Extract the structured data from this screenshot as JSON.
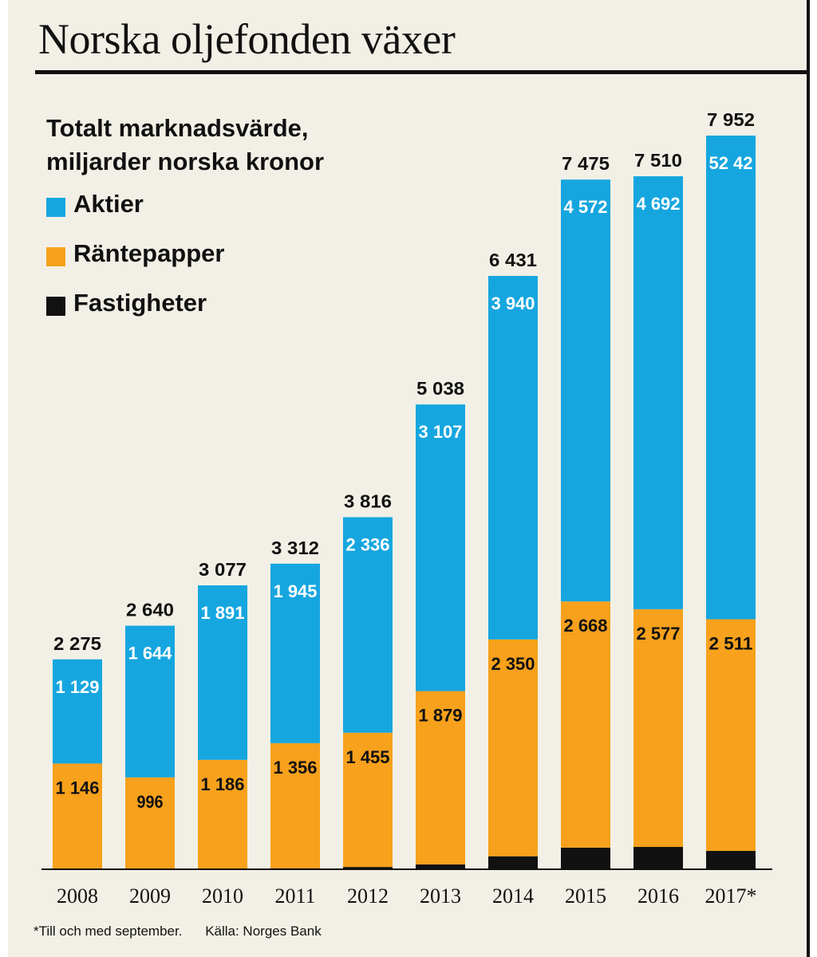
{
  "header": {
    "title": "Norska oljefonden växer",
    "subtitle_line1": "Totalt marknadsvärde,",
    "subtitle_line2": "miljarder norska kronor"
  },
  "footer": {
    "note": "*Till och med september.",
    "source": "Källa: Norges Bank"
  },
  "colors": {
    "aktier": "#16a6df",
    "rantepapper": "#f7a11c",
    "fastigheter": "#111111",
    "background": "#f2f0e6"
  },
  "chart_data": {
    "type": "bar",
    "stacked": true,
    "categories": [
      "2008",
      "2009",
      "2010",
      "2011",
      "2012",
      "2013",
      "2014",
      "2015",
      "2016",
      "2017*"
    ],
    "series": [
      {
        "name": "Fastigheter",
        "values": [
          0,
          0,
          0,
          11,
          25,
          52,
          141,
          235,
          242,
          199
        ],
        "labels": [
          "",
          "",
          "",
          "11",
          "25",
          "52",
          "141",
          "235",
          "242",
          "199"
        ]
      },
      {
        "name": "Räntepapper",
        "values": [
          1146,
          996,
          1186,
          1356,
          1455,
          1879,
          2350,
          2668,
          2577,
          2511
        ],
        "labels": [
          "1 146",
          "996",
          "1 186",
          "1 356",
          "1 455",
          "1 879",
          "2 350",
          "2 668",
          "2 577",
          "2 511"
        ]
      },
      {
        "name": "Aktier",
        "values": [
          1129,
          1644,
          1891,
          1945,
          2336,
          3107,
          3940,
          4572,
          4692,
          5242
        ],
        "labels": [
          "1 129",
          "1 644",
          "1 891",
          "1 945",
          "2 336",
          "3 107",
          "3 940",
          "4 572",
          "4 692",
          "52 42"
        ]
      }
    ],
    "totals": [
      2275,
      2640,
      3077,
      3312,
      3816,
      5038,
      6431,
      7475,
      7510,
      7952
    ],
    "total_labels": [
      "2 275",
      "2 640",
      "3 077",
      "3 312",
      "3 816",
      "5 038",
      "6 431",
      "7 475",
      "7 510",
      "7 952"
    ],
    "ylim": [
      0,
      7952
    ],
    "grid": false,
    "legend": "top-left"
  }
}
